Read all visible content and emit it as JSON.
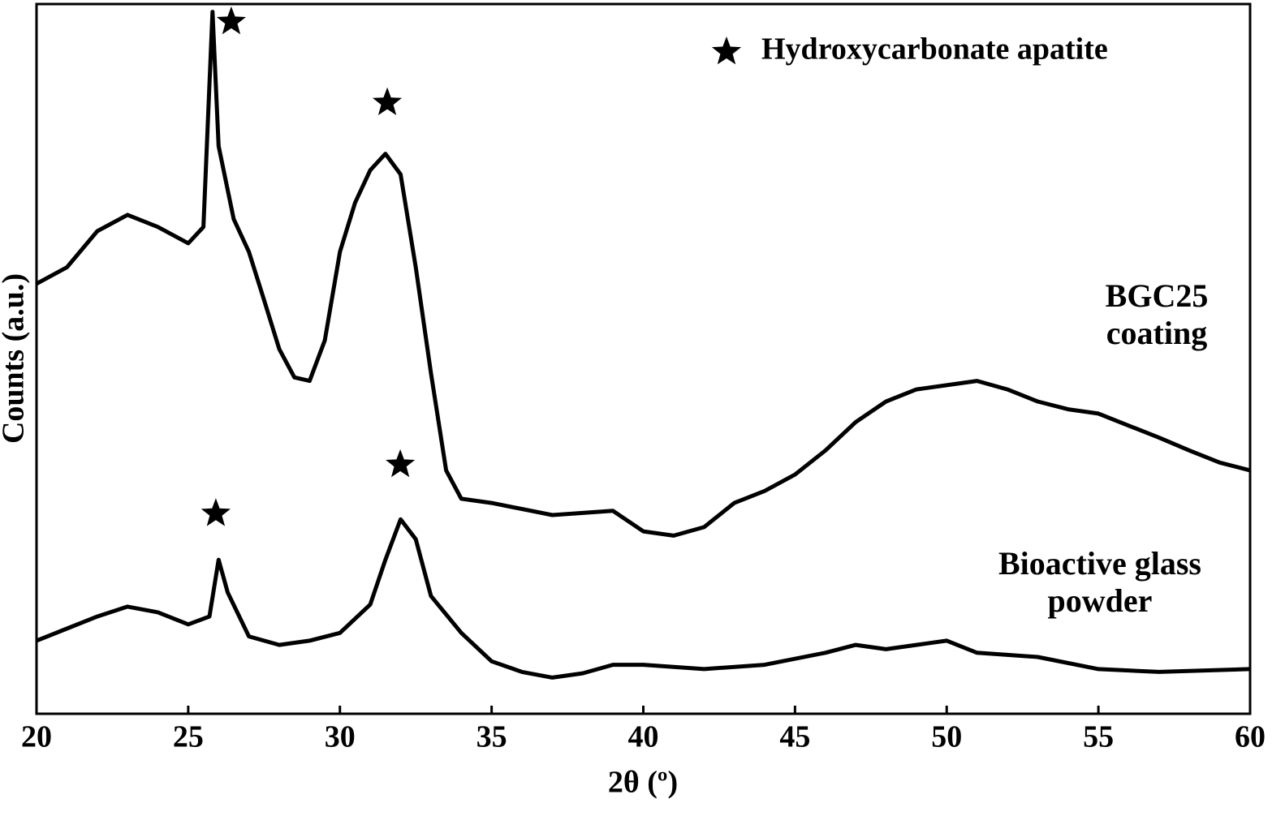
{
  "chart_data": {
    "type": "line",
    "x_label": "2θ (º)",
    "y_label": "Counts (a.u.)",
    "xlim": [
      20,
      60
    ],
    "xticks": [
      20,
      25,
      30,
      35,
      40,
      45,
      50,
      55,
      60
    ],
    "ylim": [
      0,
      100
    ],
    "series": [
      {
        "name": "BGC25 coating",
        "color": "#000000",
        "x": [
          20,
          21,
          22,
          23,
          24,
          25,
          25.5,
          25.8,
          26,
          26.5,
          27,
          27.5,
          28,
          28.5,
          29,
          29.5,
          30,
          30.5,
          31,
          31.5,
          32,
          32.5,
          33,
          33.5,
          34,
          35,
          37,
          39,
          40,
          41,
          42,
          43,
          44,
          45,
          46,
          47,
          48,
          49,
          50,
          51,
          52,
          53,
          54,
          55,
          56,
          57,
          58,
          59,
          60
        ],
        "values": [
          60.6,
          62.9,
          68,
          70.3,
          68.6,
          66.3,
          68.6,
          98.9,
          80,
          69.7,
          65.1,
          58.3,
          51.4,
          47.4,
          46.9,
          52.6,
          65.1,
          72,
          76.6,
          78.9,
          76,
          62.9,
          48,
          34.3,
          30.3,
          29.7,
          28,
          28.6,
          25.7,
          25.1,
          26.3,
          29.7,
          31.4,
          33.7,
          37.1,
          41.1,
          44,
          45.7,
          46.3,
          46.9,
          45.7,
          44,
          42.9,
          42.3,
          40.6,
          38.9,
          37.1,
          35.4,
          34.3
        ]
      },
      {
        "name": "Bioactive glass powder",
        "color": "#000000",
        "x": [
          20,
          21,
          22,
          23,
          24,
          25,
          25.7,
          26,
          26.3,
          27,
          28,
          29,
          30,
          31,
          31.5,
          32,
          32.5,
          33,
          34,
          35,
          36,
          37,
          38,
          39,
          40,
          42,
          44,
          46,
          47,
          48,
          49,
          50,
          51,
          53,
          55,
          57,
          60
        ],
        "values": [
          10.3,
          12,
          13.7,
          15.1,
          14.3,
          12.6,
          13.7,
          21.7,
          17.1,
          10.9,
          9.7,
          10.3,
          11.4,
          15.4,
          21.7,
          27.4,
          24.6,
          16.6,
          11.4,
          7.4,
          5.9,
          5.1,
          5.7,
          6.9,
          6.9,
          6.3,
          6.9,
          8.6,
          9.7,
          9.1,
          9.7,
          10.3,
          8.6,
          8,
          6.3,
          5.9,
          6.3
        ]
      }
    ],
    "markers": {
      "name": "Hydroxycarbonate apatite",
      "color": "#000000",
      "x": [
        26.42,
        31.56,
        25.91,
        31.99
      ],
      "y": [
        97.5,
        86.1,
        28.2,
        35.1
      ]
    }
  }
}
